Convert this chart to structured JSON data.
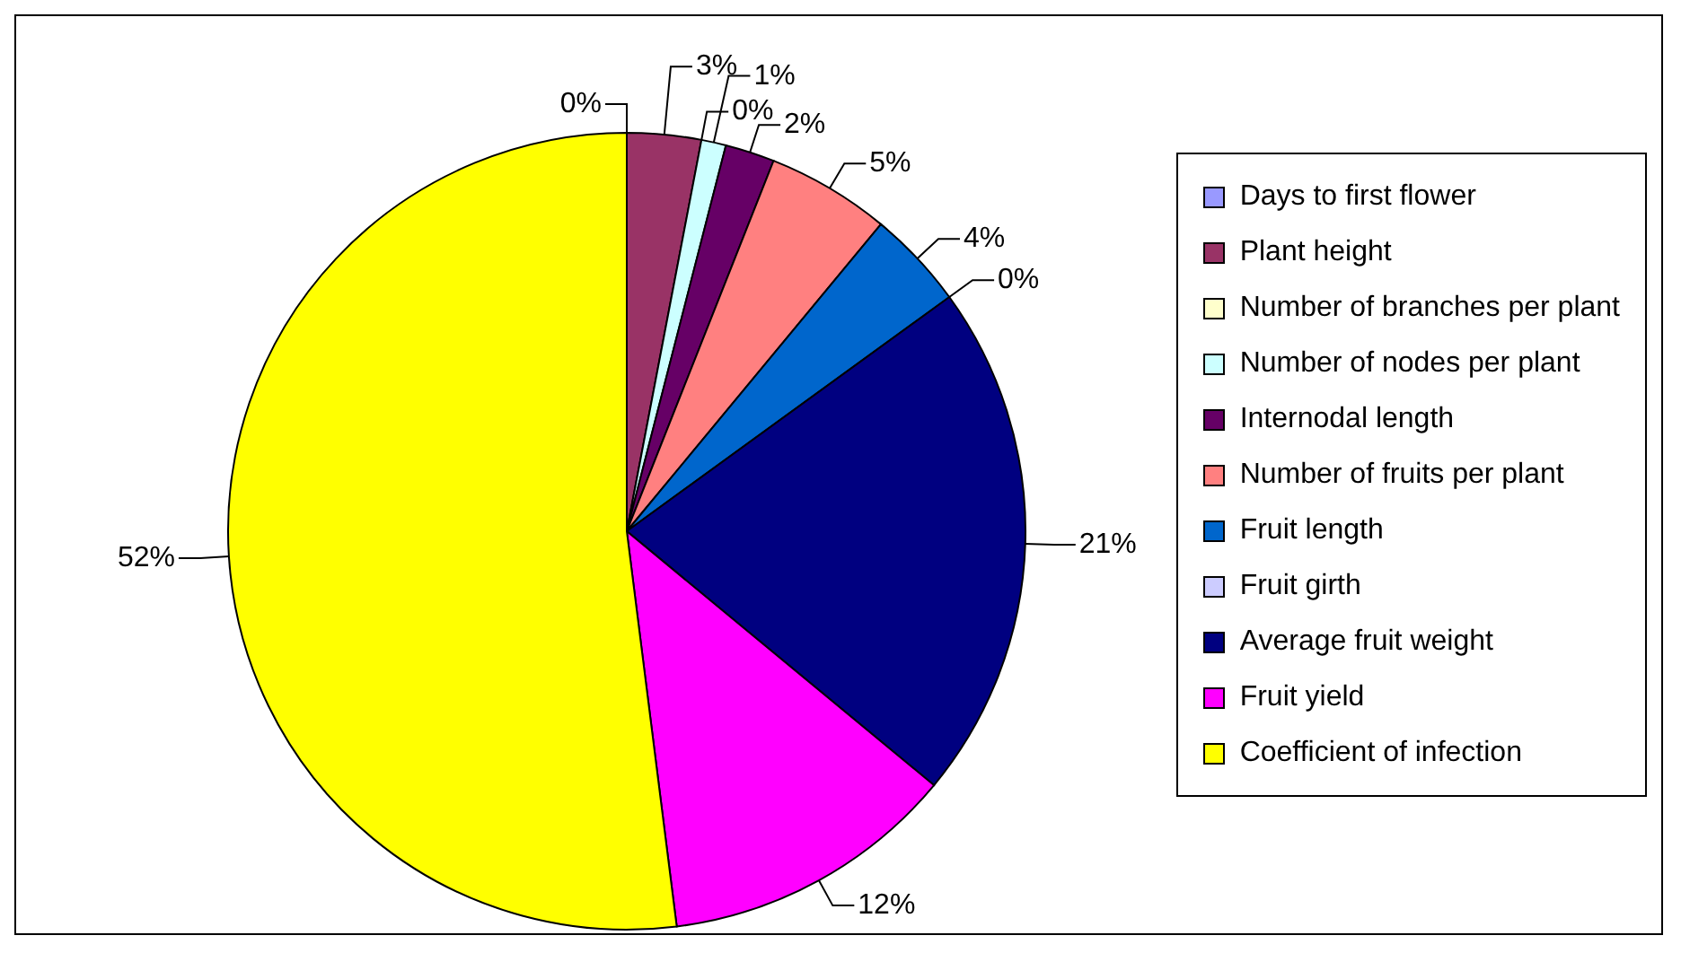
{
  "chart_data": {
    "type": "pie",
    "categories": [
      "Days to first flower",
      "Plant height",
      "Number of branches per plant",
      "Number of nodes per plant",
      "Internodal length",
      "Number of fruits per plant",
      "Fruit length",
      "Fruit girth",
      "Average fruit weight",
      "Fruit yield",
      "Coefficient of infection"
    ],
    "values": [
      0,
      3,
      0,
      1,
      2,
      5,
      4,
      0,
      21,
      12,
      52
    ],
    "value_labels": [
      "0%",
      "3%",
      "0%",
      "1%",
      "2%",
      "5%",
      "4%",
      "0%",
      "21%",
      "12%",
      "52%"
    ],
    "colors": [
      "#9999ff",
      "#993366",
      "#ffffcc",
      "#ccffff",
      "#660066",
      "#ff8080",
      "#0066cc",
      "#ccccff",
      "#000080",
      "#ff00ff",
      "#ffff00"
    ],
    "legend": "right"
  }
}
